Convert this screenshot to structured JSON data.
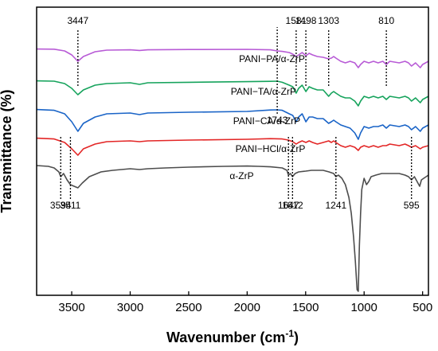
{
  "chart_data": {
    "type": "line",
    "xlabel_main": "Wavenumber",
    "xlabel_unit": "(cm",
    "xlabel_sup": "-1",
    "xlabel_close": ")",
    "ylabel": "Transmittance (%)",
    "xlim": [
      3800,
      450
    ],
    "x_reversed": true,
    "y_ticks_shown": false,
    "grid": false,
    "x_ticks": [
      3500,
      3000,
      2500,
      2000,
      1500,
      1000,
      500
    ],
    "x_tick_labels": [
      "3500",
      "3000",
      "2500",
      "2000",
      "1500",
      "1000",
      "500"
    ],
    "series": [
      {
        "name": "PANI−PA/α-ZrP",
        "color": "#b85bd6",
        "offset": 4,
        "points": [
          [
            3800,
            0.3
          ],
          [
            3650,
            0.4
          ],
          [
            3560,
            1.5
          ],
          [
            3500,
            4
          ],
          [
            3447,
            8
          ],
          [
            3400,
            5
          ],
          [
            3300,
            2
          ],
          [
            3200,
            1
          ],
          [
            3000,
            0.8
          ],
          [
            2920,
            1.2
          ],
          [
            2850,
            0.8
          ],
          [
            2500,
            0.6
          ],
          [
            2000,
            0.5
          ],
          [
            1800,
            0.8
          ],
          [
            1743,
            1.5
          ],
          [
            1700,
            1.8
          ],
          [
            1640,
            2.5
          ],
          [
            1610,
            3.5
          ],
          [
            1581,
            5
          ],
          [
            1560,
            4
          ],
          [
            1530,
            2.5
          ],
          [
            1498,
            4.5
          ],
          [
            1470,
            3
          ],
          [
            1440,
            4
          ],
          [
            1400,
            5
          ],
          [
            1350,
            5.5
          ],
          [
            1303,
            6.5
          ],
          [
            1280,
            6
          ],
          [
            1260,
            5
          ],
          [
            1241,
            6
          ],
          [
            1200,
            8
          ],
          [
            1160,
            9
          ],
          [
            1120,
            8
          ],
          [
            1080,
            9
          ],
          [
            1050,
            12
          ],
          [
            1030,
            10
          ],
          [
            1000,
            8
          ],
          [
            960,
            9
          ],
          [
            920,
            8
          ],
          [
            880,
            9
          ],
          [
            840,
            8
          ],
          [
            810,
            10
          ],
          [
            780,
            8
          ],
          [
            700,
            9
          ],
          [
            650,
            8
          ],
          [
            620,
            9
          ],
          [
            595,
            11
          ],
          [
            560,
            9
          ],
          [
            520,
            12
          ],
          [
            500,
            10
          ],
          [
            450,
            8
          ]
        ]
      },
      {
        "name": "PANI−TA/α-ZrP",
        "color": "#16a35c",
        "offset": 3,
        "points": [
          [
            3800,
            0.3
          ],
          [
            3650,
            0.5
          ],
          [
            3560,
            2
          ],
          [
            3500,
            5
          ],
          [
            3447,
            9
          ],
          [
            3400,
            6
          ],
          [
            3300,
            3
          ],
          [
            3200,
            2
          ],
          [
            3000,
            1.5
          ],
          [
            2920,
            2.5
          ],
          [
            2850,
            1.5
          ],
          [
            2500,
            1.2
          ],
          [
            2000,
            0.8
          ],
          [
            1800,
            0.6
          ],
          [
            1743,
            0.5
          ],
          [
            1700,
            1.2
          ],
          [
            1640,
            3
          ],
          [
            1610,
            4
          ],
          [
            1581,
            8
          ],
          [
            1560,
            5
          ],
          [
            1530,
            3
          ],
          [
            1498,
            7
          ],
          [
            1470,
            4
          ],
          [
            1440,
            5
          ],
          [
            1400,
            6
          ],
          [
            1350,
            6
          ],
          [
            1303,
            10
          ],
          [
            1280,
            8
          ],
          [
            1260,
            7
          ],
          [
            1241,
            8
          ],
          [
            1200,
            10
          ],
          [
            1160,
            11
          ],
          [
            1120,
            11
          ],
          [
            1080,
            13
          ],
          [
            1050,
            16
          ],
          [
            1030,
            13
          ],
          [
            1000,
            10
          ],
          [
            960,
            11
          ],
          [
            920,
            10
          ],
          [
            880,
            11
          ],
          [
            840,
            10
          ],
          [
            810,
            12
          ],
          [
            780,
            10
          ],
          [
            700,
            11
          ],
          [
            650,
            10
          ],
          [
            620,
            11
          ],
          [
            595,
            13
          ],
          [
            560,
            11
          ],
          [
            520,
            14
          ],
          [
            500,
            12
          ],
          [
            450,
            10
          ]
        ]
      },
      {
        "name": "PANI−CA/α-ZrP",
        "color": "#1a64c7",
        "offset": 2,
        "points": [
          [
            3800,
            0.3
          ],
          [
            3650,
            0.8
          ],
          [
            3560,
            3
          ],
          [
            3500,
            8
          ],
          [
            3447,
            14
          ],
          [
            3400,
            9
          ],
          [
            3300,
            5
          ],
          [
            3200,
            3
          ],
          [
            3000,
            2.5
          ],
          [
            2920,
            3.5
          ],
          [
            2850,
            2.5
          ],
          [
            2500,
            2
          ],
          [
            2000,
            1.5
          ],
          [
            1800,
            0.6
          ],
          [
            1743,
            0.5
          ],
          [
            1700,
            0.8
          ],
          [
            1640,
            3
          ],
          [
            1610,
            4
          ],
          [
            1581,
            8
          ],
          [
            1560,
            5
          ],
          [
            1530,
            3
          ],
          [
            1498,
            8
          ],
          [
            1470,
            5
          ],
          [
            1440,
            5
          ],
          [
            1400,
            6
          ],
          [
            1350,
            6
          ],
          [
            1303,
            9
          ],
          [
            1280,
            8
          ],
          [
            1260,
            7
          ],
          [
            1241,
            8
          ],
          [
            1200,
            10
          ],
          [
            1160,
            11
          ],
          [
            1120,
            12
          ],
          [
            1080,
            15
          ],
          [
            1050,
            19
          ],
          [
            1030,
            15
          ],
          [
            1000,
            11
          ],
          [
            960,
            12
          ],
          [
            920,
            11
          ],
          [
            880,
            11
          ],
          [
            840,
            10
          ],
          [
            810,
            12
          ],
          [
            780,
            10
          ],
          [
            700,
            11
          ],
          [
            650,
            10
          ],
          [
            620,
            11
          ],
          [
            595,
            13
          ],
          [
            560,
            11
          ],
          [
            520,
            14
          ],
          [
            500,
            12
          ],
          [
            450,
            10
          ]
        ]
      },
      {
        "name": "PANI−HCl/α-ZrP",
        "color": "#e32626",
        "offset": 1,
        "points": [
          [
            3800,
            0.3
          ],
          [
            3650,
            0.8
          ],
          [
            3560,
            3
          ],
          [
            3500,
            7
          ],
          [
            3447,
            11
          ],
          [
            3400,
            7
          ],
          [
            3300,
            4
          ],
          [
            3200,
            2.5
          ],
          [
            3000,
            2
          ],
          [
            2920,
            2.5
          ],
          [
            2850,
            2
          ],
          [
            2500,
            1.5
          ],
          [
            2000,
            1
          ],
          [
            1800,
            0.6
          ],
          [
            1700,
            0.8
          ],
          [
            1647,
            1.5
          ],
          [
            1610,
            2.5
          ],
          [
            1581,
            4
          ],
          [
            1560,
            3
          ],
          [
            1530,
            2
          ],
          [
            1498,
            3
          ],
          [
            1470,
            2
          ],
          [
            1440,
            3
          ],
          [
            1400,
            4
          ],
          [
            1350,
            3
          ],
          [
            1303,
            2
          ],
          [
            1280,
            3
          ],
          [
            1260,
            2
          ],
          [
            1241,
            3
          ],
          [
            1200,
            5
          ],
          [
            1160,
            6
          ],
          [
            1120,
            5
          ],
          [
            1080,
            6
          ],
          [
            1050,
            8
          ],
          [
            1030,
            6
          ],
          [
            1000,
            5
          ],
          [
            960,
            6
          ],
          [
            920,
            5
          ],
          [
            880,
            6
          ],
          [
            840,
            5
          ],
          [
            810,
            5
          ],
          [
            780,
            4
          ],
          [
            700,
            5
          ],
          [
            650,
            4
          ],
          [
            620,
            5
          ],
          [
            595,
            6
          ],
          [
            560,
            5
          ],
          [
            520,
            7
          ],
          [
            500,
            6
          ],
          [
            450,
            5
          ]
        ]
      },
      {
        "name": "α-ZrP",
        "color": "#4d4d4d",
        "offset": 0,
        "points": [
          [
            3800,
            0
          ],
          [
            3700,
            0.5
          ],
          [
            3650,
            1.5
          ],
          [
            3610,
            4
          ],
          [
            3594,
            7
          ],
          [
            3570,
            5
          ],
          [
            3540,
            9
          ],
          [
            3511,
            12
          ],
          [
            3480,
            13
          ],
          [
            3447,
            14
          ],
          [
            3410,
            11
          ],
          [
            3350,
            7
          ],
          [
            3250,
            4
          ],
          [
            3150,
            3
          ],
          [
            3000,
            2
          ],
          [
            2920,
            2.5
          ],
          [
            2850,
            2
          ],
          [
            2700,
            1.5
          ],
          [
            2500,
            1
          ],
          [
            2200,
            0.5
          ],
          [
            2000,
            0.3
          ],
          [
            1900,
            0.5
          ],
          [
            1800,
            0.8
          ],
          [
            1700,
            1.5
          ],
          [
            1660,
            3
          ],
          [
            1647,
            6
          ],
          [
            1630,
            5
          ],
          [
            1612,
            7
          ],
          [
            1590,
            5
          ],
          [
            1560,
            4
          ],
          [
            1500,
            3.5
          ],
          [
            1450,
            3
          ],
          [
            1400,
            3
          ],
          [
            1350,
            3
          ],
          [
            1300,
            4
          ],
          [
            1260,
            5
          ],
          [
            1241,
            7
          ],
          [
            1220,
            6
          ],
          [
            1190,
            8
          ],
          [
            1160,
            12
          ],
          [
            1130,
            20
          ],
          [
            1110,
            30
          ],
          [
            1090,
            45
          ],
          [
            1075,
            60
          ],
          [
            1060,
            78
          ],
          [
            1050,
            79
          ],
          [
            1040,
            50
          ],
          [
            1030,
            30
          ],
          [
            1020,
            15
          ],
          [
            1000,
            8
          ],
          [
            980,
            12
          ],
          [
            960,
            10
          ],
          [
            940,
            7
          ],
          [
            900,
            6
          ],
          [
            850,
            5
          ],
          [
            800,
            5
          ],
          [
            750,
            5
          ],
          [
            700,
            5
          ],
          [
            650,
            6
          ],
          [
            620,
            7
          ],
          [
            595,
            9
          ],
          [
            570,
            7
          ],
          [
            540,
            11
          ],
          [
            525,
            13
          ],
          [
            510,
            9
          ],
          [
            490,
            8
          ],
          [
            470,
            7
          ],
          [
            450,
            6
          ]
        ]
      }
    ],
    "series_labels": [
      {
        "text": "PANI−PA/α-ZrP",
        "x": 2070
      },
      {
        "text": "PANI−TA/α-ZrP",
        "x": 2140
      },
      {
        "text": "PANI−CA/α-ZrP",
        "x": 2120
      },
      {
        "text": "PANI−HCl/α-ZrP",
        "x": 2100
      },
      {
        "text": "α-ZrP",
        "x": 2150
      }
    ],
    "annotations": [
      {
        "text": "3447",
        "x": 3447,
        "label_pos": "top"
      },
      {
        "text": "1581",
        "x": 1581,
        "label_pos": "top"
      },
      {
        "text": "1498",
        "x": 1498,
        "label_pos": "top"
      },
      {
        "text": "1303",
        "x": 1303,
        "label_pos": "top"
      },
      {
        "text": "810",
        "x": 810,
        "label_pos": "top"
      },
      {
        "text": "1743",
        "x": 1743,
        "label_pos": "mid"
      },
      {
        "text": "1647",
        "x": 1647,
        "label_pos": "bottom"
      },
      {
        "text": "1612",
        "x": 1612,
        "label_pos": "bottom"
      },
      {
        "text": "1241",
        "x": 1241,
        "label_pos": "bottom"
      },
      {
        "text": "595",
        "x": 595,
        "label_pos": "bottom"
      },
      {
        "text": "3594",
        "x": 3594,
        "label_pos": "bottom"
      },
      {
        "text": "3511",
        "x": 3511,
        "label_pos": "bottom"
      }
    ]
  }
}
